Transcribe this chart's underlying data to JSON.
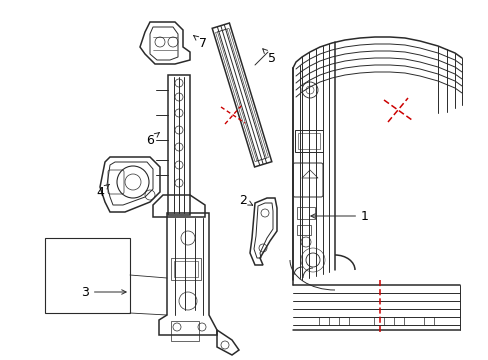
{
  "background_color": "#ffffff",
  "line_color": "#2a2a2a",
  "red_dash_color": "#cc0000",
  "label_color": "#000000",
  "fig_width": 4.89,
  "fig_height": 3.6,
  "dpi": 100
}
